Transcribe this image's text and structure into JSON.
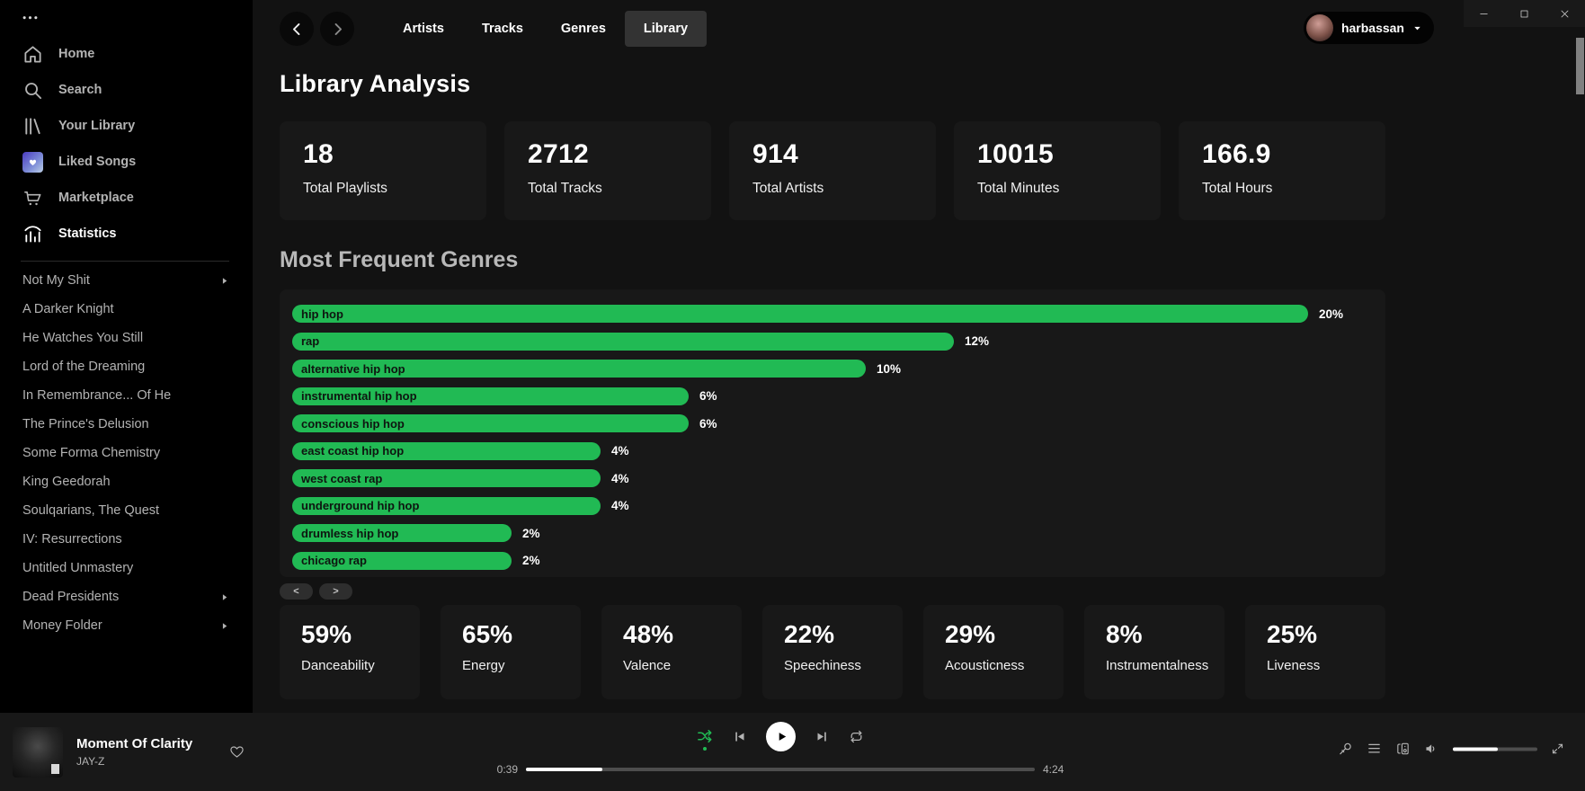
{
  "titlebar": {
    "controls": [
      {
        "name": "minimize"
      },
      {
        "name": "maximize"
      },
      {
        "name": "close"
      }
    ]
  },
  "sidebar": {
    "nav": [
      {
        "label": "Home",
        "icon": "home-icon"
      },
      {
        "label": "Search",
        "icon": "search-icon"
      },
      {
        "label": "Your Library",
        "icon": "your-library-icon"
      },
      {
        "label": "Liked Songs",
        "icon": "liked-songs-icon"
      },
      {
        "label": "Marketplace",
        "icon": "marketplace-icon"
      },
      {
        "label": "Statistics",
        "icon": "statistics-icon",
        "active": true
      }
    ],
    "playlists": [
      {
        "label": "Not My Shit",
        "folder": true
      },
      {
        "label": "A Darker Knight"
      },
      {
        "label": "He Watches You Still"
      },
      {
        "label": "Lord of the Dreaming"
      },
      {
        "label": "In Remembrance... Of He"
      },
      {
        "label": "The Prince's Delusion"
      },
      {
        "label": "Some Forma Chemistry"
      },
      {
        "label": "King Geedorah"
      },
      {
        "label": "Soulqarians, The Quest"
      },
      {
        "label": "IV: Resurrections"
      },
      {
        "label": "Untitled Unmastery"
      },
      {
        "label": "Dead Presidents",
        "folder": true
      },
      {
        "label": "Money Folder",
        "folder": true
      }
    ]
  },
  "topbar": {
    "tabs": [
      {
        "label": "Artists"
      },
      {
        "label": "Tracks"
      },
      {
        "label": "Genres"
      },
      {
        "label": "Library",
        "active": true
      }
    ],
    "user": {
      "name": "harbassan"
    }
  },
  "main": {
    "title": "Library Analysis",
    "stat_cards": [
      {
        "value": "18",
        "label": "Total Playlists"
      },
      {
        "value": "2712",
        "label": "Total Tracks"
      },
      {
        "value": "914",
        "label": "Total Artists"
      },
      {
        "value": "10015",
        "label": "Total Minutes"
      },
      {
        "value": "166.9",
        "label": "Total Hours"
      }
    ],
    "genres_heading": "Most Frequent Genres",
    "chart_data": {
      "type": "bar",
      "orientation": "horizontal",
      "title": "Most Frequent Genres",
      "categories": [
        "hip hop",
        "rap",
        "alternative hip hop",
        "instrumental hip hop",
        "conscious hip hop",
        "east coast hip hop",
        "west coast rap",
        "underground hip hop",
        "drumless hip hop",
        "chicago rap"
      ],
      "values": [
        20,
        12,
        10,
        6,
        6,
        4,
        4,
        4,
        2,
        2
      ],
      "unit": "%",
      "bar_color": "#21ba54",
      "legend": "none",
      "grid": "off"
    },
    "pagination": {
      "prev": "<",
      "next": ">"
    },
    "feature_cards": [
      {
        "value": "59%",
        "label": "Danceability"
      },
      {
        "value": "65%",
        "label": "Energy"
      },
      {
        "value": "48%",
        "label": "Valence"
      },
      {
        "value": "22%",
        "label": "Speechiness"
      },
      {
        "value": "29%",
        "label": "Acousticness"
      },
      {
        "value": "8%",
        "label": "Instrumentalness"
      },
      {
        "value": "25%",
        "label": "Liveness"
      }
    ]
  },
  "player": {
    "track": {
      "title": "Moment Of Clarity",
      "artist": "JAY-Z"
    },
    "current_time": "0:39",
    "total_time": "4:24",
    "progress_pct": 15,
    "volume_pct": 53,
    "shuffle_active": true
  },
  "colors": {
    "accent_green": "#21ba54",
    "main_bg": "#121212",
    "sidebar_bg": "#000000",
    "card_bg": "#181818",
    "player_bg": "#181818"
  }
}
